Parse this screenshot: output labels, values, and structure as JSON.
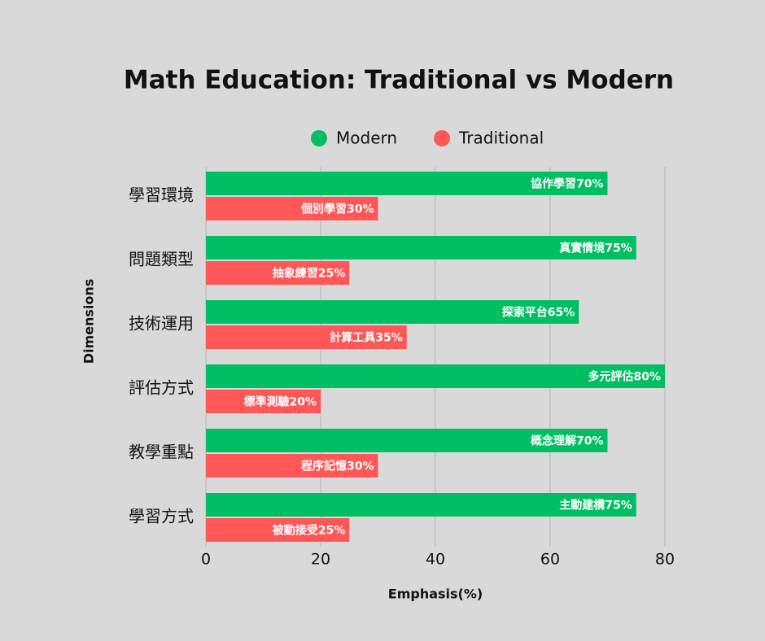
{
  "chart_data": {
    "type": "bar",
    "orientation": "horizontal",
    "title": "Math Education: Traditional vs Modern",
    "xlabel": "Emphasis(%)",
    "ylabel": "Dimensions",
    "categories": [
      "學習環境",
      "問題類型",
      "技術運用",
      "評估方式",
      "教學重點",
      "學習方式"
    ],
    "series": [
      {
        "name": "Modern",
        "color": "#00bf63",
        "values": [
          70,
          75,
          65,
          80,
          70,
          75
        ],
        "value_labels": [
          "協作學習70%",
          "真實情境75%",
          "探索平台65%",
          "多元評估80%",
          "概念理解70%",
          "主動建構75%"
        ]
      },
      {
        "name": "Traditional",
        "color": "#ff5757",
        "values": [
          30,
          25,
          35,
          20,
          30,
          25
        ],
        "value_labels": [
          "個別學習30%",
          "抽象練習25%",
          "計算工具35%",
          "標準測驗20%",
          "程序記憶30%",
          "被動接受25%"
        ]
      }
    ],
    "xlim": [
      0,
      80
    ],
    "xticks": [
      0,
      20,
      40,
      60,
      80
    ],
    "grid": true,
    "legend": "top"
  }
}
